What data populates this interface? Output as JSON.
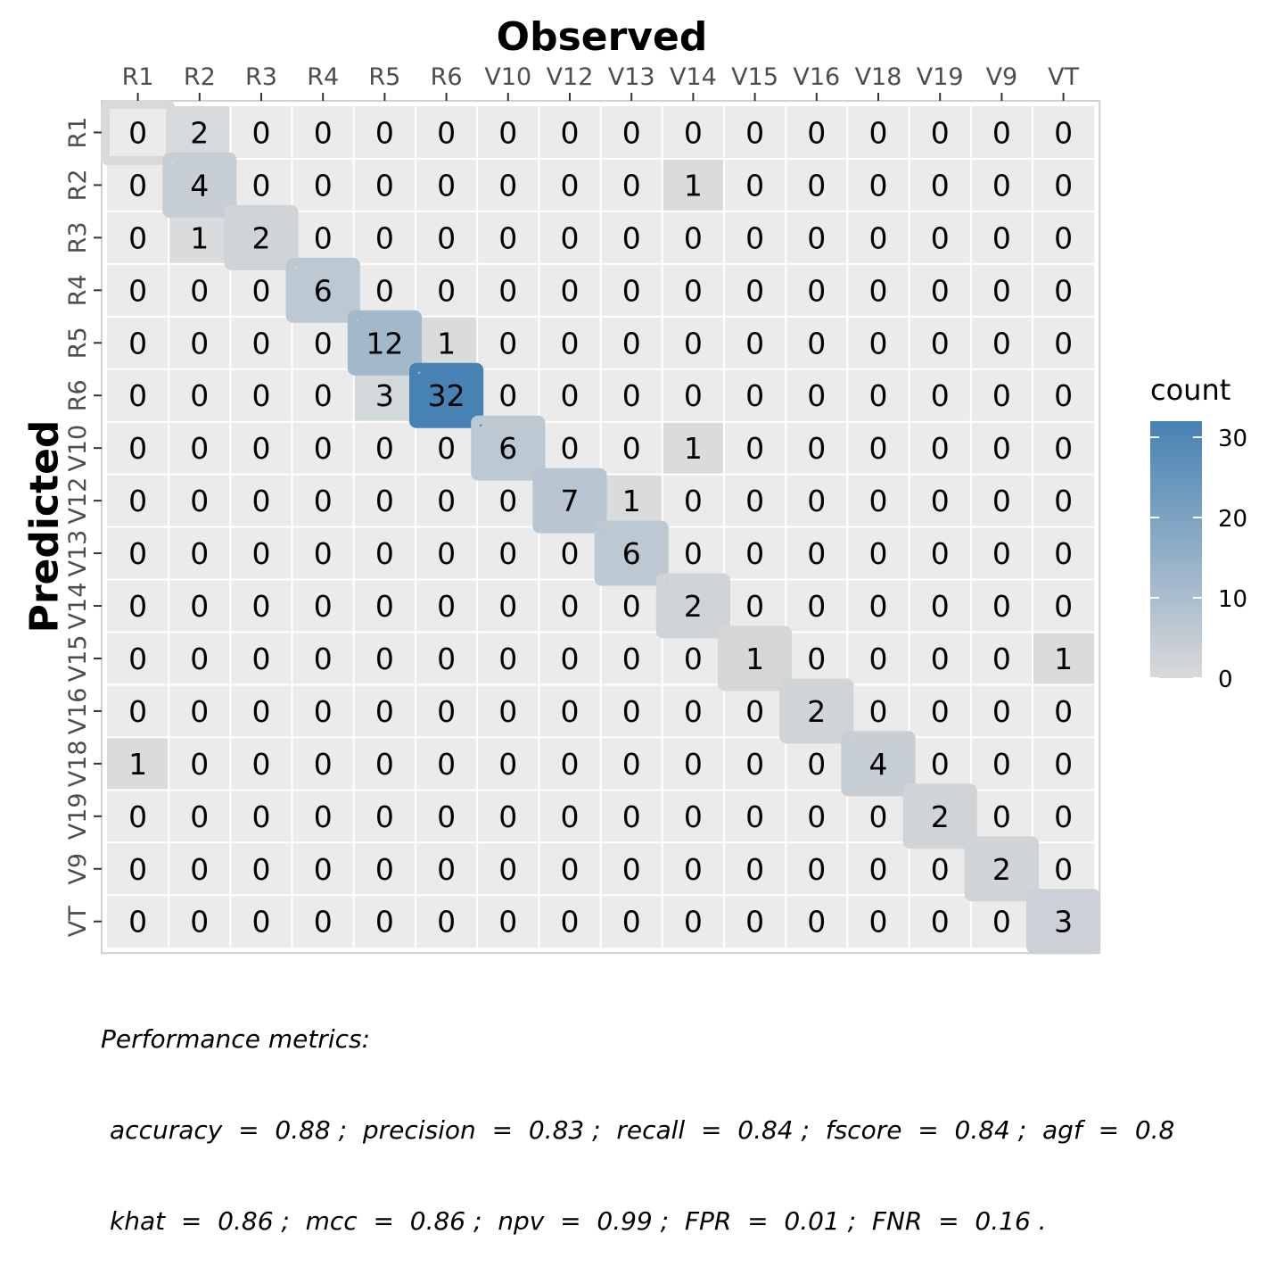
{
  "chart_data": {
    "type": "heatmap",
    "title": "",
    "xlabel": "Observed",
    "ylabel": "Predicted",
    "x_categories": [
      "R1",
      "R2",
      "R3",
      "R4",
      "R5",
      "R6",
      "V10",
      "V12",
      "V13",
      "V14",
      "V15",
      "V16",
      "V18",
      "V19",
      "V9",
      "VT"
    ],
    "y_categories": [
      "R1",
      "R2",
      "R3",
      "R4",
      "R5",
      "R6",
      "V10",
      "V12",
      "V13",
      "V14",
      "V15",
      "V16",
      "V18",
      "V19",
      "V9",
      "VT"
    ],
    "values": [
      [
        0,
        2,
        0,
        0,
        0,
        0,
        0,
        0,
        0,
        0,
        0,
        0,
        0,
        0,
        0,
        0
      ],
      [
        0,
        4,
        0,
        0,
        0,
        0,
        0,
        0,
        0,
        1,
        0,
        0,
        0,
        0,
        0,
        0
      ],
      [
        0,
        1,
        2,
        0,
        0,
        0,
        0,
        0,
        0,
        0,
        0,
        0,
        0,
        0,
        0,
        0
      ],
      [
        0,
        0,
        0,
        6,
        0,
        0,
        0,
        0,
        0,
        0,
        0,
        0,
        0,
        0,
        0,
        0
      ],
      [
        0,
        0,
        0,
        0,
        12,
        1,
        0,
        0,
        0,
        0,
        0,
        0,
        0,
        0,
        0,
        0
      ],
      [
        0,
        0,
        0,
        0,
        3,
        32,
        0,
        0,
        0,
        0,
        0,
        0,
        0,
        0,
        0,
        0
      ],
      [
        0,
        0,
        0,
        0,
        0,
        0,
        6,
        0,
        0,
        1,
        0,
        0,
        0,
        0,
        0,
        0
      ],
      [
        0,
        0,
        0,
        0,
        0,
        0,
        0,
        7,
        1,
        0,
        0,
        0,
        0,
        0,
        0,
        0
      ],
      [
        0,
        0,
        0,
        0,
        0,
        0,
        0,
        0,
        6,
        0,
        0,
        0,
        0,
        0,
        0,
        0
      ],
      [
        0,
        0,
        0,
        0,
        0,
        0,
        0,
        0,
        0,
        2,
        0,
        0,
        0,
        0,
        0,
        0
      ],
      [
        0,
        0,
        0,
        0,
        0,
        0,
        0,
        0,
        0,
        0,
        1,
        0,
        0,
        0,
        0,
        1
      ],
      [
        0,
        0,
        0,
        0,
        0,
        0,
        0,
        0,
        0,
        0,
        0,
        2,
        0,
        0,
        0,
        0
      ],
      [
        1,
        0,
        0,
        0,
        0,
        0,
        0,
        0,
        0,
        0,
        0,
        0,
        4,
        0,
        0,
        0
      ],
      [
        0,
        0,
        0,
        0,
        0,
        0,
        0,
        0,
        0,
        0,
        0,
        0,
        0,
        2,
        0,
        0
      ],
      [
        0,
        0,
        0,
        0,
        0,
        0,
        0,
        0,
        0,
        0,
        0,
        0,
        0,
        0,
        2,
        0
      ],
      [
        0,
        0,
        0,
        0,
        0,
        0,
        0,
        0,
        0,
        0,
        0,
        0,
        0,
        0,
        0,
        3
      ]
    ],
    "legend": {
      "title": "count",
      "ticks": [
        0,
        10,
        20,
        30
      ],
      "range": [
        0,
        32
      ],
      "color_low": "#d9d9d9",
      "color_high": "#4682b4",
      "placement": "right"
    },
    "diagonal_highlight": true,
    "grid": true,
    "x_axis_position": "top"
  },
  "caption": {
    "line1": "Performance metrics:",
    "line2": "accuracy  =  0.88 ;  precision  =  0.83 ;  recall  =  0.84 ;  fscore  =  0.84 ;  agf  =  0.8",
    "line3": "khat  =  0.86 ;  mcc  =  0.86 ;  npv  =  0.99 ;  FPR  =  0.01 ;  FNR  =  0.16 ."
  },
  "colors": {
    "panel_background": "#ebebeb",
    "gridline": "#ffffff",
    "tick_text": "#4d4d4d",
    "accent": "#4682b4"
  }
}
